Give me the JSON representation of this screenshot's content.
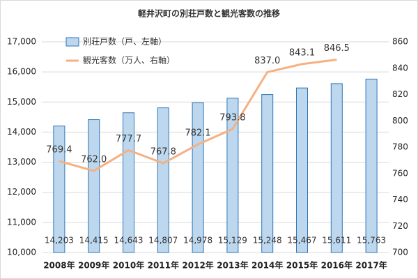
{
  "chart_data": {
    "type": "combo",
    "title": "軽井沢町の別荘戸数と観光客数の推移",
    "categories": [
      "2008年",
      "2009年",
      "2010年",
      "2011年",
      "2012年",
      "2013年",
      "2014年",
      "2015年",
      "2016年",
      "2017年"
    ],
    "series": [
      {
        "name": "別荘戸数（戸、左軸）",
        "type": "bar",
        "axis": "y",
        "color": "#bdd7ee",
        "values": [
          14203,
          14415,
          14643,
          14807,
          14978,
          15129,
          15248,
          15467,
          15611,
          15763
        ],
        "value_labels": [
          "14,203",
          "14,415",
          "14,643",
          "14,807",
          "14,978",
          "15,129",
          "15,248",
          "15,467",
          "15,611",
          "15,763"
        ]
      },
      {
        "name": "観光客数（万人、右軸）",
        "type": "line",
        "axis": "y2",
        "color": "#f4b183",
        "values": [
          769.4,
          762.0,
          777.7,
          767.8,
          782.1,
          793.8,
          837.0,
          843.1,
          846.5,
          null
        ],
        "value_labels": [
          "769.4",
          "762.0",
          "777.7",
          "767.8",
          "782.1",
          "793.8",
          "837.0",
          "843.1",
          "846.5",
          null
        ]
      }
    ],
    "ylim": [
      10000,
      17000
    ],
    "yticks": [
      {
        "value": 10000,
        "label": "10,000"
      },
      {
        "value": 11000,
        "label": "11,000"
      },
      {
        "value": 12000,
        "label": "12,000"
      },
      {
        "value": 13000,
        "label": "13,000"
      },
      {
        "value": 14000,
        "label": "14,000"
      },
      {
        "value": 15000,
        "label": "15,000"
      },
      {
        "value": 16000,
        "label": "16,000"
      },
      {
        "value": 17000,
        "label": "17,000"
      }
    ],
    "y2lim": [
      700,
      860
    ],
    "y2ticks": [
      700,
      720,
      740,
      760,
      780,
      800,
      820,
      840,
      860
    ],
    "grid": true,
    "legend": "upper left"
  }
}
